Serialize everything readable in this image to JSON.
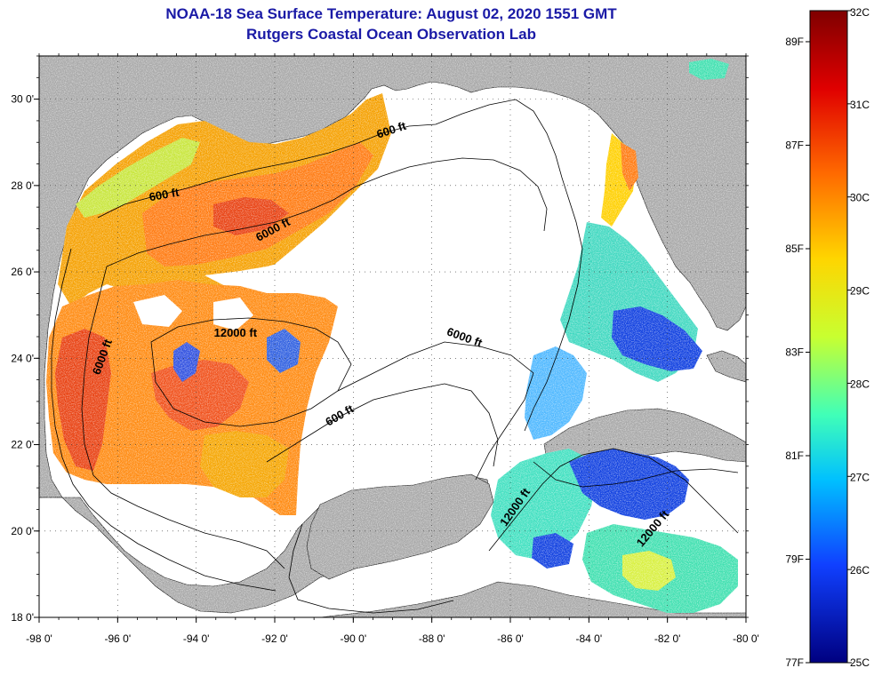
{
  "title": "NOAA-18 Sea Surface Temperature:  August 02, 2020 1551 GMT",
  "subtitle": "Rutgers Coastal Ocean Observation Lab",
  "x_axis": {
    "ticks": [
      {
        "value": -98,
        "label": "-98 0'"
      },
      {
        "value": -96,
        "label": "-96 0'"
      },
      {
        "value": -94,
        "label": "-94 0'"
      },
      {
        "value": -92,
        "label": "-92 0'"
      },
      {
        "value": -90,
        "label": "-90 0'"
      },
      {
        "value": -88,
        "label": "-88 0'"
      },
      {
        "value": -86,
        "label": "-86 0'"
      },
      {
        "value": -84,
        "label": "-84 0'"
      },
      {
        "value": -82,
        "label": "-82 0'"
      },
      {
        "value": -80,
        "label": "-80 0'"
      }
    ]
  },
  "y_axis": {
    "ticks": [
      {
        "value": 30,
        "label": "30 0'"
      },
      {
        "value": 28,
        "label": "28 0'"
      },
      {
        "value": 26,
        "label": "26 0'"
      },
      {
        "value": 24,
        "label": "24 0'"
      },
      {
        "value": 22,
        "label": "22 0'"
      },
      {
        "value": 20,
        "label": "20 0'"
      },
      {
        "value": 18,
        "label": "18 0'"
      }
    ]
  },
  "contour_labels": [
    {
      "text": "600 ft",
      "lon": -94.8,
      "lat": 27.7,
      "angle": -10
    },
    {
      "text": "6000 ft",
      "lon": -92.0,
      "lat": 26.9,
      "angle": -28
    },
    {
      "text": "600 ft",
      "lon": -89.0,
      "lat": 29.2,
      "angle": -18
    },
    {
      "text": "12000 ft",
      "lon": -93.0,
      "lat": 24.5,
      "angle": 0
    },
    {
      "text": "6000 ft",
      "lon": -96.3,
      "lat": 24.0,
      "angle": -70
    },
    {
      "text": "6000 ft",
      "lon": -87.2,
      "lat": 24.4,
      "angle": 20
    },
    {
      "text": "600 ft",
      "lon": -90.3,
      "lat": 22.6,
      "angle": -30
    },
    {
      "text": "12000 ft",
      "lon": -85.8,
      "lat": 20.5,
      "angle": -55
    },
    {
      "text": "12000 ft",
      "lon": -82.3,
      "lat": 20.0,
      "angle": -50
    }
  ],
  "colorbar": {
    "celsius_labels": [
      "32C",
      "31C",
      "30C",
      "29C",
      "28C",
      "27C",
      "26C",
      "25C"
    ],
    "fahrenheit_labels": [
      "89F",
      "87F",
      "85F",
      "83F",
      "81F",
      "79F",
      "77F"
    ],
    "min_c": 25,
    "max_c": 32
  },
  "colors": {
    "title": "#1a1aa6",
    "land": "#a8a8a8",
    "water_nodata": "#ffffff"
  }
}
